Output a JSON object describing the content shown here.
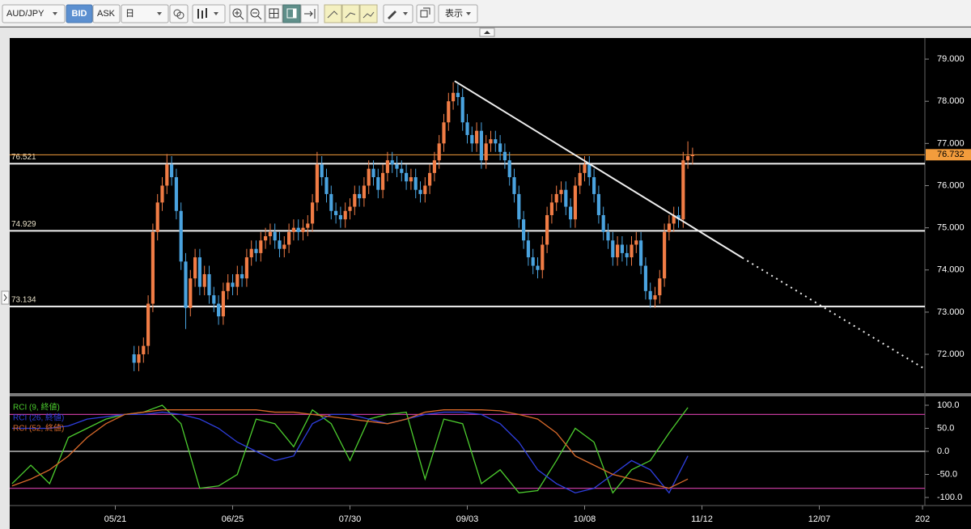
{
  "toolbar": {
    "symbol": "AUD/JPY",
    "bid": "BID",
    "ask": "ASK",
    "period": "日",
    "view": "表示"
  },
  "chart_data": [
    {
      "type": "candlestick",
      "xlim": [
        -0.5,
        194.5
      ],
      "ylim": [
        71.08,
        79.5
      ],
      "yticks": [
        {
          "value": 72,
          "label": "72.000"
        },
        {
          "value": 73,
          "label": "73.000"
        },
        {
          "value": 74,
          "label": "74.000"
        },
        {
          "value": 75,
          "label": "75.000"
        },
        {
          "value": 76,
          "label": "76.000"
        },
        {
          "value": 77,
          "label": "77.000"
        },
        {
          "value": 78,
          "label": "78.000"
        },
        {
          "value": 79,
          "label": "79.000"
        }
      ],
      "up_color": "#f07c45",
      "down_color": "#4aa3df",
      "levels": [
        76.521,
        74.929,
        73.134
      ],
      "last_price": 76.732,
      "last_price_color": "#f39c3c",
      "trendline": {
        "x": [
          94.3,
          155.6,
          194.5
        ],
        "y": [
          78.48,
          74.29,
          71.65
        ]
      },
      "x": [
        26,
        27,
        28,
        29,
        30,
        31,
        32,
        33,
        34,
        35,
        36,
        37,
        38,
        39,
        40,
        41,
        42,
        43,
        44,
        45,
        46,
        47,
        48,
        49,
        50,
        51,
        52,
        53,
        54,
        55,
        56,
        57,
        58,
        59,
        60,
        61,
        62,
        63,
        64,
        65,
        66,
        67,
        68,
        69,
        70,
        71,
        72,
        73,
        74,
        75,
        76,
        77,
        78,
        79,
        80,
        81,
        82,
        83,
        84,
        85,
        86,
        87,
        88,
        89,
        90,
        91,
        92,
        93,
        94,
        95,
        96,
        97,
        98,
        99,
        100,
        101,
        102,
        103,
        104,
        105,
        106,
        107,
        108,
        109,
        110,
        111,
        112,
        113,
        114,
        115,
        116,
        117,
        118,
        119,
        120,
        121,
        122,
        123,
        124,
        125,
        126,
        127,
        128,
        129,
        130,
        131,
        132,
        133,
        134,
        135,
        136,
        137,
        138,
        139,
        140,
        141,
        142,
        143,
        144,
        145
      ],
      "open": [
        72.0,
        71.8,
        72.0,
        72.2,
        73.2,
        74.9,
        75.6,
        76.0,
        76.5,
        76.2,
        75.4,
        74.2,
        73.1,
        73.8,
        74.3,
        73.6,
        73.9,
        73.4,
        73.2,
        72.9,
        73.5,
        73.7,
        73.6,
        73.9,
        73.8,
        74.3,
        74.5,
        74.4,
        74.7,
        74.8,
        74.9,
        74.7,
        74.5,
        74.6,
        74.9,
        75.0,
        74.9,
        75.0,
        75.1,
        75.6,
        76.5,
        76.2,
        75.8,
        75.4,
        75.3,
        75.2,
        75.4,
        75.5,
        75.8,
        75.7,
        76.0,
        76.4,
        76.2,
        75.9,
        76.3,
        76.6,
        76.5,
        76.4,
        76.3,
        76.1,
        76.2,
        75.9,
        75.8,
        76.0,
        76.3,
        76.6,
        77.0,
        77.5,
        78.0,
        78.2,
        78.1,
        77.5,
        77.2,
        77.0,
        77.3,
        76.6,
        77.0,
        77.1,
        77.0,
        76.8,
        76.6,
        76.2,
        75.8,
        75.2,
        74.7,
        74.3,
        74.1,
        74.0,
        74.6,
        75.3,
        75.6,
        75.8,
        75.9,
        75.5,
        75.2,
        76.0,
        76.3,
        76.5,
        76.2,
        75.8,
        75.3,
        74.9,
        74.7,
        74.3,
        74.6,
        74.4,
        74.3,
        74.6,
        74.7,
        74.1,
        73.5,
        73.3,
        73.4,
        73.8,
        74.9,
        75.1,
        75.3,
        75.2,
        76.6,
        76.7
      ],
      "high": [
        72.2,
        72.2,
        72.4,
        73.4,
        75.1,
        75.8,
        76.2,
        76.75,
        76.7,
        76.4,
        75.6,
        74.4,
        74.0,
        74.5,
        74.5,
        74.1,
        74.1,
        73.6,
        73.4,
        73.7,
        73.9,
        73.9,
        74.1,
        74.1,
        74.5,
        74.7,
        74.7,
        74.9,
        75.0,
        75.1,
        75.1,
        74.9,
        74.8,
        75.1,
        75.2,
        75.2,
        75.2,
        75.3,
        75.8,
        76.8,
        76.7,
        76.4,
        76.0,
        75.6,
        75.5,
        75.6,
        75.7,
        76.0,
        76.0,
        76.2,
        76.6,
        76.6,
        76.4,
        76.5,
        76.8,
        76.8,
        76.7,
        76.6,
        76.5,
        76.4,
        76.4,
        76.1,
        76.2,
        76.5,
        76.8,
        77.2,
        77.7,
        78.2,
        78.45,
        78.4,
        78.3,
        77.7,
        77.4,
        77.5,
        77.5,
        77.2,
        77.3,
        77.3,
        77.2,
        77.0,
        76.8,
        76.4,
        76.0,
        75.4,
        74.9,
        74.5,
        74.3,
        74.8,
        75.5,
        75.8,
        76.0,
        76.1,
        76.1,
        75.7,
        76.2,
        76.5,
        76.7,
        76.7,
        76.4,
        76.0,
        75.5,
        75.1,
        74.9,
        74.8,
        74.8,
        74.6,
        74.8,
        74.9,
        74.9,
        74.3,
        73.7,
        73.6,
        74.0,
        75.1,
        75.3,
        75.5,
        75.5,
        76.8,
        77.05,
        76.9
      ],
      "low": [
        71.6,
        71.6,
        71.8,
        72.0,
        73.0,
        74.7,
        75.4,
        75.8,
        76.0,
        75.2,
        74.0,
        72.6,
        72.9,
        73.6,
        73.4,
        73.4,
        73.2,
        73.0,
        72.7,
        72.7,
        73.3,
        73.4,
        73.4,
        73.6,
        73.6,
        74.1,
        74.2,
        74.2,
        74.5,
        74.6,
        74.5,
        74.3,
        74.3,
        74.4,
        74.7,
        74.7,
        74.7,
        74.8,
        74.9,
        75.4,
        76.0,
        75.6,
        75.2,
        75.1,
        75.0,
        75.0,
        75.2,
        75.3,
        75.5,
        75.5,
        75.8,
        76.0,
        75.7,
        75.7,
        76.1,
        76.3,
        76.2,
        76.1,
        75.9,
        75.9,
        75.7,
        75.6,
        75.6,
        75.8,
        76.1,
        76.4,
        76.8,
        77.3,
        77.8,
        77.9,
        77.3,
        77.0,
        76.8,
        76.8,
        76.4,
        76.4,
        76.8,
        76.8,
        76.6,
        76.4,
        76.0,
        75.6,
        75.0,
        74.5,
        74.1,
        73.9,
        73.8,
        73.8,
        74.4,
        75.1,
        75.4,
        75.6,
        75.3,
        75.0,
        75.0,
        75.8,
        76.1,
        76.0,
        75.6,
        75.1,
        74.7,
        74.5,
        74.1,
        74.1,
        74.2,
        74.1,
        74.1,
        74.4,
        73.9,
        73.3,
        73.1,
        73.1,
        73.2,
        73.6,
        74.7,
        74.9,
        75.0,
        75.0,
        76.4,
        76.5
      ],
      "close": [
        71.8,
        72.0,
        72.2,
        73.2,
        74.9,
        75.6,
        76.0,
        76.5,
        76.2,
        75.4,
        74.2,
        73.1,
        73.8,
        74.3,
        73.6,
        73.9,
        73.4,
        73.2,
        72.9,
        73.5,
        73.7,
        73.6,
        73.9,
        73.8,
        74.3,
        74.5,
        74.4,
        74.7,
        74.8,
        74.9,
        74.7,
        74.5,
        74.6,
        74.9,
        75.0,
        74.9,
        75.0,
        75.1,
        75.6,
        76.5,
        76.2,
        75.8,
        75.4,
        75.3,
        75.2,
        75.4,
        75.5,
        75.8,
        75.7,
        76.0,
        76.4,
        76.2,
        75.9,
        76.3,
        76.6,
        76.5,
        76.4,
        76.3,
        76.1,
        76.2,
        75.9,
        75.8,
        76.0,
        76.3,
        76.6,
        77.0,
        77.5,
        78.0,
        78.2,
        78.1,
        77.5,
        77.2,
        77.0,
        77.3,
        76.6,
        77.0,
        77.1,
        77.0,
        76.8,
        76.6,
        76.2,
        75.8,
        75.2,
        74.7,
        74.3,
        74.1,
        74.0,
        74.6,
        75.3,
        75.6,
        75.8,
        75.9,
        75.5,
        75.2,
        76.0,
        76.3,
        76.5,
        76.2,
        75.8,
        75.3,
        74.9,
        74.7,
        74.3,
        74.6,
        74.4,
        74.3,
        74.6,
        74.7,
        74.1,
        73.5,
        73.3,
        73.4,
        73.8,
        74.9,
        75.1,
        75.3,
        75.2,
        76.6,
        76.7,
        76.73
      ]
    },
    {
      "type": "line",
      "xlim": [
        -0.5,
        194.5
      ],
      "ylim": [
        -117.5,
        119.3
      ],
      "yticks": [
        {
          "value": -100,
          "label": "-100.0"
        },
        {
          "value": -50,
          "label": "-50.0"
        },
        {
          "value": 0,
          "label": "0.0"
        },
        {
          "value": 50,
          "label": "50.0"
        },
        {
          "value": 100,
          "label": "100.0"
        }
      ],
      "xticks": [
        {
          "value": 22,
          "label": "05/21"
        },
        {
          "value": 47,
          "label": "06/25"
        },
        {
          "value": 72,
          "label": "07/30"
        },
        {
          "value": 97,
          "label": "09/03"
        },
        {
          "value": 122,
          "label": "10/08"
        },
        {
          "value": 147,
          "label": "11/12"
        },
        {
          "value": 172,
          "label": "12/07"
        },
        {
          "value": 194,
          "label": "202"
        }
      ],
      "hlines": [
        80,
        0,
        -80
      ],
      "hline_color": "#c0399a",
      "x": [
        0,
        4,
        8,
        12,
        16,
        20,
        24,
        28,
        32,
        36,
        40,
        44,
        48,
        52,
        56,
        60,
        64,
        68,
        72,
        76,
        80,
        84,
        88,
        92,
        96,
        100,
        104,
        108,
        112,
        116,
        120,
        124,
        128,
        132,
        136,
        140,
        144
      ],
      "series": [
        {
          "name": "RCI (9, 終値)",
          "color": "#4ccc2e",
          "values": [
            -70,
            -30,
            -70,
            30,
            50,
            70,
            80,
            85,
            100,
            60,
            -80,
            -75,
            -50,
            70,
            60,
            10,
            90,
            60,
            -20,
            70,
            80,
            85,
            -60,
            70,
            60,
            -70,
            -40,
            -90,
            -85,
            -20,
            50,
            20,
            -90,
            -40,
            -20,
            40,
            95
          ]
        },
        {
          "name": "RCI (26, 終値)",
          "color": "#2f3fe0",
          "values": [
            50,
            50,
            50,
            55,
            70,
            75,
            80,
            80,
            85,
            80,
            70,
            50,
            20,
            0,
            -20,
            -10,
            60,
            80,
            80,
            70,
            60,
            70,
            80,
            85,
            85,
            80,
            60,
            20,
            -40,
            -70,
            -90,
            -80,
            -50,
            -20,
            -40,
            -90,
            -10
          ]
        },
        {
          "name": "RCI (52, 終値)",
          "color": "#d8692a",
          "values": [
            -75,
            -60,
            -40,
            -10,
            30,
            60,
            80,
            85,
            90,
            90,
            90,
            90,
            90,
            90,
            85,
            85,
            80,
            75,
            70,
            65,
            60,
            70,
            85,
            90,
            90,
            90,
            88,
            80,
            70,
            40,
            -10,
            -30,
            -50,
            -60,
            -70,
            -80,
            -60
          ]
        }
      ]
    }
  ]
}
